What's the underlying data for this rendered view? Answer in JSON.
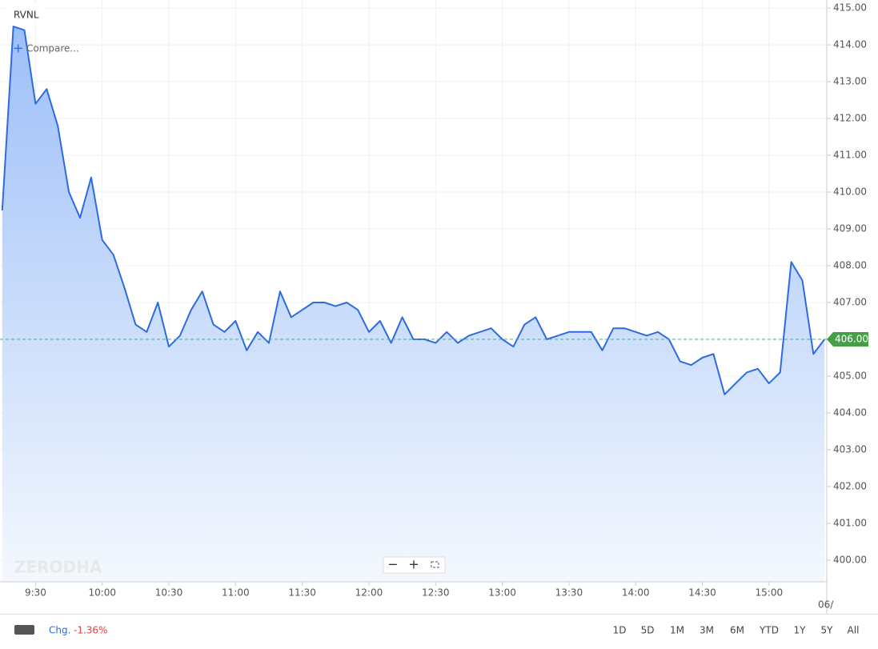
{
  "chart_data": {
    "type": "area",
    "symbol": "RVNL",
    "color": "#2d6be0",
    "x": [
      "9:15",
      "9:20",
      "9:25",
      "9:30",
      "9:35",
      "9:40",
      "9:45",
      "9:50",
      "9:55",
      "10:00",
      "10:05",
      "10:10",
      "10:15",
      "10:20",
      "10:25",
      "10:30",
      "10:35",
      "10:40",
      "10:45",
      "10:50",
      "10:55",
      "11:00",
      "11:05",
      "11:10",
      "11:15",
      "11:20",
      "11:25",
      "11:30",
      "11:35",
      "11:40",
      "11:45",
      "11:50",
      "11:55",
      "12:00",
      "12:05",
      "12:10",
      "12:15",
      "12:20",
      "12:25",
      "12:30",
      "12:35",
      "12:40",
      "12:45",
      "12:50",
      "12:55",
      "13:00",
      "13:05",
      "13:10",
      "13:15",
      "13:20",
      "13:25",
      "13:30",
      "13:35",
      "13:40",
      "13:45",
      "13:50",
      "13:55",
      "14:00",
      "14:05",
      "14:10",
      "14:15",
      "14:20",
      "14:25",
      "14:30",
      "14:35",
      "14:40",
      "14:45",
      "14:50",
      "14:55",
      "15:00",
      "15:05",
      "15:10",
      "15:15",
      "15:20",
      "15:25"
    ],
    "values": [
      409.5,
      414.5,
      414.4,
      412.4,
      412.8,
      411.8,
      410.0,
      409.3,
      410.4,
      408.7,
      408.3,
      407.4,
      406.4,
      406.2,
      407.0,
      405.8,
      406.1,
      406.8,
      407.3,
      406.4,
      406.2,
      406.5,
      405.7,
      406.2,
      405.9,
      407.3,
      406.6,
      406.8,
      407.0,
      407.0,
      406.9,
      407.0,
      406.8,
      406.2,
      406.5,
      405.9,
      406.6,
      406.0,
      406.0,
      405.9,
      406.2,
      405.9,
      406.1,
      406.2,
      406.3,
      406.0,
      405.8,
      406.4,
      406.6,
      406.0,
      406.1,
      406.2,
      406.2,
      406.2,
      405.7,
      406.3,
      406.3,
      406.2,
      406.1,
      406.2,
      406.0,
      405.4,
      405.3,
      405.5,
      405.6,
      404.5,
      404.8,
      405.1,
      405.2,
      404.8,
      405.1,
      408.1,
      407.6,
      405.6,
      406.0
    ],
    "xlim": [
      "9:14",
      "15:26"
    ],
    "xticks": [
      "9:30",
      "10:00",
      "10:30",
      "11:00",
      "11:30",
      "12:00",
      "12:30",
      "13:00",
      "13:30",
      "14:00",
      "14:30",
      "15:00"
    ],
    "ylim": [
      399.41,
      415.22
    ],
    "yticks": [
      {
        "value": 400,
        "label": "400.00"
      },
      {
        "value": 401,
        "label": "401.00"
      },
      {
        "value": 402,
        "label": "402.00"
      },
      {
        "value": 403,
        "label": "403.00"
      },
      {
        "value": 404,
        "label": "404.00"
      },
      {
        "value": 405,
        "label": "405.00"
      },
      {
        "value": 406,
        "label": "406.00"
      },
      {
        "value": 407,
        "label": "407.00"
      },
      {
        "value": 408,
        "label": "408.00"
      },
      {
        "value": 409,
        "label": "409.00"
      },
      {
        "value": 410,
        "label": "410.00"
      },
      {
        "value": 411,
        "label": "411.00"
      },
      {
        "value": 412,
        "label": "412.00"
      },
      {
        "value": 413,
        "label": "413.00"
      },
      {
        "value": 414,
        "label": "414.00"
      },
      {
        "value": 415,
        "label": "415.00"
      }
    ],
    "grid": true,
    "last_price": {
      "value": 406,
      "label": "406.00"
    },
    "date_stub": "06/"
  },
  "ui": {
    "compare": "Compare...",
    "watermark": "ZERODHA",
    "change_label": "Chg.",
    "change_value": "-1.36%",
    "ranges": [
      "1D",
      "5D",
      "1M",
      "3M",
      "6M",
      "YTD",
      "1Y",
      "5Y",
      "All"
    ]
  }
}
